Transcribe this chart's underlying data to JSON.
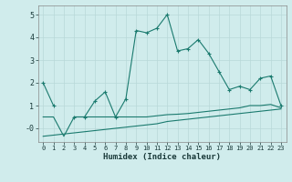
{
  "xlabel": "Humidex (Indice chaleur)",
  "x_values": [
    0,
    1,
    2,
    3,
    4,
    5,
    6,
    7,
    8,
    9,
    10,
    11,
    12,
    13,
    14,
    15,
    16,
    17,
    18,
    19,
    20,
    21,
    22,
    23
  ],
  "line1_y": [
    2.0,
    1.0,
    null,
    0.5,
    0.5,
    1.2,
    1.6,
    0.5,
    1.3,
    4.3,
    4.2,
    4.4,
    5.0,
    3.4,
    3.5,
    3.9,
    3.3,
    2.5,
    1.7,
    1.85,
    1.7,
    2.2,
    2.3,
    1.0
  ],
  "line2_y": [
    -0.35,
    -0.3,
    -0.25,
    -0.2,
    -0.15,
    -0.1,
    -0.05,
    0.0,
    0.05,
    0.1,
    0.15,
    0.2,
    0.3,
    0.35,
    0.4,
    0.45,
    0.5,
    0.55,
    0.6,
    0.65,
    0.7,
    0.75,
    0.8,
    0.85
  ],
  "line3_y": [
    0.5,
    0.5,
    -0.35,
    0.5,
    0.5,
    0.5,
    0.5,
    0.5,
    0.5,
    0.5,
    0.5,
    0.55,
    0.6,
    0.62,
    0.65,
    0.7,
    0.75,
    0.8,
    0.85,
    0.9,
    1.0,
    1.0,
    1.05,
    0.9
  ],
  "ylim": [
    -0.6,
    5.4
  ],
  "xlim": [
    -0.5,
    23.5
  ],
  "yticks": [
    0,
    1,
    2,
    3,
    4,
    5
  ],
  "ytick_labels": [
    "-0",
    "1",
    "2",
    "3",
    "4",
    "5"
  ],
  "xticks": [
    0,
    1,
    2,
    3,
    4,
    5,
    6,
    7,
    8,
    9,
    10,
    11,
    12,
    13,
    14,
    15,
    16,
    17,
    18,
    19,
    20,
    21,
    22,
    23
  ],
  "line_color": "#1a7a6e",
  "bg_color": "#d0ecec",
  "grid_color": "#b8d8d8"
}
